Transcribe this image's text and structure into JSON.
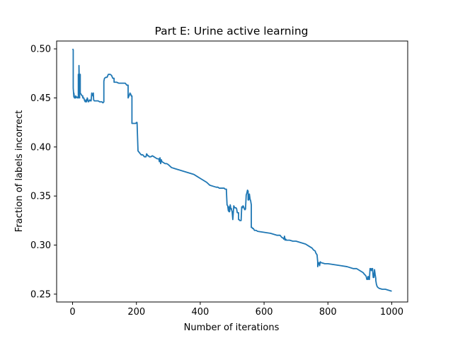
{
  "chart_data": {
    "type": "line",
    "title": "Part E: Urine active learning",
    "xlabel": "Number of iterations",
    "ylabel": "Fraction of labels incorrect",
    "xlim": [
      -50,
      1050
    ],
    "ylim": [
      0.242,
      0.508
    ],
    "xticks": [
      0,
      200,
      400,
      600,
      800,
      1000
    ],
    "yticks": [
      0.25,
      0.3,
      0.35,
      0.4,
      0.45,
      0.5
    ],
    "xtick_labels": [
      "0",
      "200",
      "400",
      "600",
      "800",
      "1000"
    ],
    "ytick_labels": [
      "0.25",
      "0.30",
      "0.35",
      "0.40",
      "0.45",
      "0.50"
    ],
    "grid": false,
    "line_color": "#1f77b4",
    "series": [
      {
        "x": [
          0,
          2,
          2,
          4,
          4,
          6,
          8,
          10,
          10,
          14,
          16,
          18,
          18,
          20,
          20,
          22,
          22,
          24,
          24,
          26,
          28,
          28,
          30,
          32,
          32,
          35,
          38,
          40,
          42,
          44,
          46,
          48,
          50,
          52,
          54,
          56,
          58,
          60,
          62,
          64,
          65,
          66,
          68,
          70,
          75,
          80,
          85,
          92,
          95,
          98,
          98,
          100,
          104,
          108,
          108,
          112,
          118,
          122,
          126,
          130,
          130,
          138,
          145,
          155,
          165,
          170,
          174,
          174,
          178,
          180,
          180,
          182,
          184,
          186,
          186,
          190,
          198,
          200,
          202,
          202,
          205,
          210,
          215,
          220,
          225,
          230,
          232,
          236,
          238,
          240,
          245,
          250,
          255,
          260,
          265,
          270,
          272,
          274,
          276,
          278,
          280,
          285,
          290,
          295,
          300,
          310,
          320,
          330,
          340,
          350,
          360,
          370,
          380,
          390,
          400,
          410,
          420,
          430,
          440,
          450,
          455,
          460,
          465,
          470,
          475,
          478,
          480,
          482,
          482,
          484,
          486,
          488,
          490,
          490,
          492,
          494,
          496,
          498,
          498,
          500,
          502,
          504,
          505,
          508,
          510,
          512,
          514,
          516,
          518,
          520,
          520,
          522,
          524,
          526,
          528,
          530,
          532,
          534,
          536,
          538,
          540,
          542,
          542,
          544,
          546,
          548,
          550,
          550,
          552,
          554,
          556,
          558,
          560,
          560,
          562,
          564,
          566,
          570,
          575,
          580,
          600,
          620,
          640,
          650,
          655,
          660,
          662,
          664,
          666,
          668,
          670,
          675,
          680,
          690,
          700,
          720,
          730,
          740,
          745,
          750,
          755,
          760,
          762,
          764,
          764,
          766,
          768,
          768,
          770,
          772,
          774,
          776,
          778,
          780,
          790,
          800,
          820,
          840,
          860,
          880,
          890,
          900,
          910,
          915,
          918,
          920,
          920,
          922,
          924,
          926,
          928,
          930,
          930,
          932,
          934,
          936,
          938,
          940,
          940,
          942,
          944,
          946,
          948,
          950,
          950,
          952,
          954,
          956,
          960,
          970,
          980,
          990,
          1000
        ],
        "y": [
          0.5,
          0.499,
          0.46,
          0.451,
          0.455,
          0.45,
          0.45,
          0.452,
          0.45,
          0.451,
          0.45,
          0.45,
          0.474,
          0.466,
          0.483,
          0.45,
          0.474,
          0.474,
          0.455,
          0.454,
          0.453,
          0.453,
          0.452,
          0.452,
          0.45,
          0.45,
          0.447,
          0.446,
          0.448,
          0.446,
          0.45,
          0.448,
          0.446,
          0.447,
          0.448,
          0.447,
          0.447,
          0.455,
          0.453,
          0.452,
          0.455,
          0.448,
          0.447,
          0.447,
          0.447,
          0.447,
          0.446,
          0.446,
          0.445,
          0.446,
          0.467,
          0.47,
          0.471,
          0.471,
          0.471,
          0.474,
          0.474,
          0.473,
          0.47,
          0.47,
          0.466,
          0.466,
          0.465,
          0.465,
          0.465,
          0.463,
          0.463,
          0.45,
          0.453,
          0.455,
          0.454,
          0.454,
          0.452,
          0.452,
          0.424,
          0.424,
          0.424,
          0.425,
          0.424,
          0.425,
          0.396,
          0.394,
          0.392,
          0.392,
          0.39,
          0.39,
          0.393,
          0.391,
          0.391,
          0.39,
          0.39,
          0.391,
          0.39,
          0.389,
          0.388,
          0.388,
          0.385,
          0.389,
          0.383,
          0.387,
          0.385,
          0.384,
          0.383,
          0.383,
          0.382,
          0.379,
          0.378,
          0.377,
          0.376,
          0.375,
          0.374,
          0.373,
          0.372,
          0.37,
          0.368,
          0.366,
          0.364,
          0.361,
          0.36,
          0.359,
          0.359,
          0.358,
          0.358,
          0.358,
          0.358,
          0.357,
          0.357,
          0.357,
          0.355,
          0.341,
          0.34,
          0.335,
          0.339,
          0.334,
          0.334,
          0.341,
          0.337,
          0.337,
          0.336,
          0.334,
          0.326,
          0.335,
          0.34,
          0.338,
          0.338,
          0.338,
          0.337,
          0.333,
          0.333,
          0.333,
          0.326,
          0.326,
          0.325,
          0.325,
          0.325,
          0.339,
          0.338,
          0.34,
          0.339,
          0.337,
          0.336,
          0.337,
          0.338,
          0.351,
          0.353,
          0.356,
          0.355,
          0.346,
          0.346,
          0.352,
          0.347,
          0.345,
          0.341,
          0.318,
          0.318,
          0.317,
          0.317,
          0.315,
          0.315,
          0.314,
          0.313,
          0.312,
          0.31,
          0.31,
          0.308,
          0.307,
          0.306,
          0.309,
          0.305,
          0.306,
          0.305,
          0.305,
          0.305,
          0.304,
          0.304,
          0.302,
          0.301,
          0.299,
          0.298,
          0.297,
          0.295,
          0.294,
          0.292,
          0.291,
          0.291,
          0.29,
          0.283,
          0.278,
          0.282,
          0.282,
          0.279,
          0.283,
          0.282,
          0.282,
          0.281,
          0.281,
          0.28,
          0.279,
          0.278,
          0.276,
          0.276,
          0.274,
          0.272,
          0.27,
          0.269,
          0.268,
          0.268,
          0.265,
          0.265,
          0.268,
          0.265,
          0.265,
          0.265,
          0.276,
          0.276,
          0.274,
          0.276,
          0.276,
          0.275,
          0.267,
          0.267,
          0.275,
          0.27,
          0.266,
          0.264,
          0.26,
          0.258,
          0.257,
          0.256,
          0.255,
          0.255,
          0.254,
          0.253
        ]
      }
    ]
  }
}
